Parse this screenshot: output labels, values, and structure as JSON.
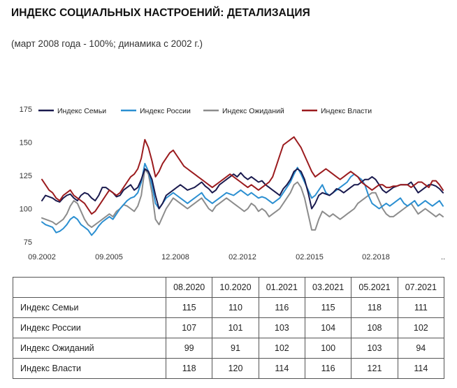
{
  "title": "ИНДЕКС СОЦИАЛЬНЫХ НАСТРОЕНИЙ: ДЕТАЛИЗАЦИЯ",
  "subtitle": "(март 2008 года - 100%; динамика с 2002 г.)",
  "chart_data": {
    "type": "line",
    "y_ticks": [
      75,
      100,
      125,
      150,
      175
    ],
    "ylim": [
      75,
      175
    ],
    "x_tick_labels": [
      "09.2002",
      "09.2005",
      "12.2008",
      "02.2012",
      "02.2015",
      "02.2018",
      ".."
    ],
    "legend_position": "top",
    "grid": false,
    "series": [
      {
        "name": "Индекс Семьи",
        "color": "#1a1a4e",
        "values": [
          106,
          110,
          109,
          108,
          106,
          105,
          108,
          110,
          111,
          108,
          106,
          110,
          112,
          111,
          108,
          106,
          110,
          116,
          116,
          114,
          112,
          109,
          110,
          114,
          116,
          118,
          114,
          116,
          122,
          130,
          128,
          122,
          110,
          100,
          104,
          110,
          112,
          114,
          116,
          118,
          116,
          114,
          115,
          116,
          118,
          120,
          117,
          115,
          112,
          114,
          118,
          120,
          122,
          124,
          126,
          124,
          127,
          124,
          122,
          124,
          122,
          120,
          121,
          118,
          116,
          114,
          112,
          110,
          115,
          118,
          122,
          128,
          130,
          128,
          122,
          112,
          100,
          104,
          110,
          112,
          111,
          110,
          112,
          115,
          114,
          112,
          114,
          116,
          118,
          118,
          120,
          122,
          122,
          124,
          122,
          118,
          114,
          112,
          114,
          116,
          117,
          118,
          118,
          118,
          120,
          116,
          112,
          114,
          116,
          118,
          118,
          117,
          115,
          112
        ]
      },
      {
        "name": "Индекс России",
        "color": "#2b8fd1",
        "values": [
          90,
          88,
          87,
          86,
          82,
          83,
          85,
          88,
          92,
          94,
          92,
          88,
          86,
          84,
          80,
          83,
          87,
          90,
          92,
          94,
          92,
          96,
          100,
          103,
          106,
          108,
          109,
          112,
          120,
          134,
          128,
          118,
          104,
          100,
          104,
          108,
          110,
          112,
          110,
          108,
          106,
          104,
          106,
          108,
          110,
          112,
          108,
          106,
          104,
          106,
          108,
          110,
          112,
          111,
          110,
          112,
          114,
          112,
          110,
          112,
          110,
          108,
          109,
          108,
          106,
          104,
          106,
          108,
          112,
          116,
          120,
          126,
          131,
          126,
          120,
          114,
          108,
          110,
          114,
          118,
          112,
          110,
          112,
          114,
          116,
          118,
          120,
          124,
          126,
          124,
          122,
          118,
          110,
          104,
          102,
          100,
          102,
          104,
          102,
          104,
          106,
          108,
          104,
          102,
          104,
          106,
          102,
          104,
          106,
          104,
          102,
          104,
          106,
          102
        ]
      },
      {
        "name": "Индекс Ожиданий",
        "color": "#8c8c8c",
        "values": [
          93,
          92,
          91,
          90,
          88,
          90,
          92,
          96,
          102,
          106,
          104,
          98,
          92,
          88,
          86,
          88,
          90,
          92,
          94,
          96,
          94,
          98,
          100,
          103,
          102,
          100,
          98,
          102,
          110,
          130,
          126,
          112,
          92,
          88,
          94,
          100,
          104,
          108,
          106,
          104,
          102,
          100,
          102,
          104,
          106,
          108,
          104,
          100,
          98,
          102,
          104,
          106,
          108,
          106,
          104,
          102,
          100,
          98,
          100,
          104,
          102,
          98,
          100,
          98,
          94,
          96,
          98,
          100,
          104,
          108,
          112,
          118,
          120,
          116,
          108,
          96,
          84,
          84,
          92,
          98,
          96,
          94,
          96,
          94,
          92,
          94,
          96,
          98,
          100,
          104,
          106,
          108,
          110,
          112,
          112,
          106,
          100,
          96,
          94,
          94,
          96,
          98,
          100,
          102,
          104,
          100,
          96,
          98,
          100,
          98,
          96,
          94,
          96,
          94
        ]
      },
      {
        "name": "Индекс Власти",
        "color": "#9b1b1e",
        "values": [
          122,
          118,
          114,
          112,
          108,
          106,
          110,
          112,
          114,
          110,
          108,
          106,
          104,
          100,
          96,
          98,
          102,
          106,
          110,
          114,
          112,
          110,
          112,
          116,
          120,
          124,
          126,
          130,
          138,
          152,
          146,
          136,
          124,
          128,
          134,
          138,
          142,
          144,
          140,
          136,
          132,
          130,
          128,
          126,
          124,
          122,
          120,
          118,
          116,
          118,
          120,
          122,
          124,
          126,
          124,
          122,
          120,
          118,
          116,
          118,
          116,
          114,
          116,
          118,
          120,
          124,
          132,
          140,
          148,
          150,
          152,
          154,
          150,
          146,
          140,
          134,
          128,
          124,
          126,
          128,
          130,
          128,
          126,
          124,
          122,
          124,
          126,
          128,
          126,
          124,
          120,
          118,
          116,
          114,
          116,
          118,
          118,
          116,
          116,
          117,
          117,
          118,
          118,
          118,
          116,
          118,
          120,
          120,
          118,
          116,
          121,
          121,
          118,
          114
        ]
      }
    ]
  },
  "table": {
    "columns": [
      "08.2020",
      "10.2020",
      "01.2021",
      "03.2021",
      "05.2021",
      "07.2021"
    ],
    "rows": [
      {
        "label": "Индекс Семьи",
        "values": [
          "115",
          "110",
          "116",
          "115",
          "118",
          "111"
        ]
      },
      {
        "label": "Индекс России",
        "values": [
          "107",
          "101",
          "103",
          "104",
          "108",
          "102"
        ]
      },
      {
        "label": "Индекс Ожиданий",
        "values": [
          "99",
          "91",
          "102",
          "100",
          "103",
          "94"
        ]
      },
      {
        "label": "Индекс Власти",
        "values": [
          "118",
          "120",
          "114",
          "116",
          "121",
          "114"
        ]
      }
    ]
  }
}
